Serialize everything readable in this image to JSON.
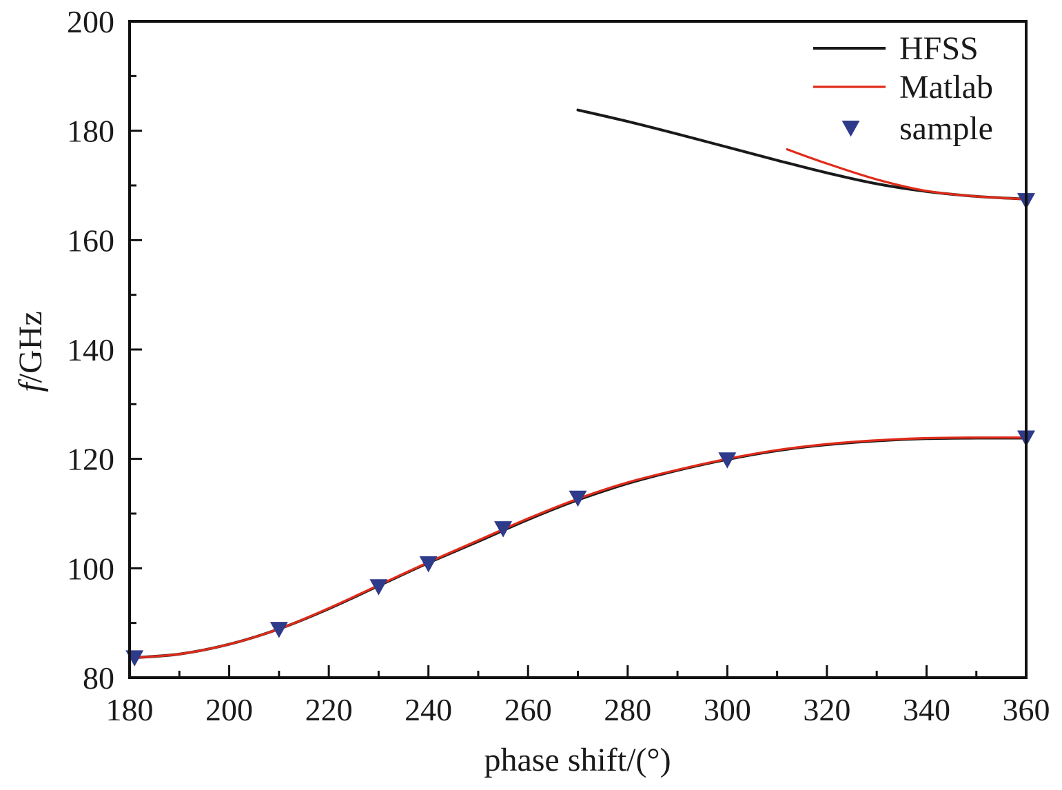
{
  "chart_data": {
    "type": "line",
    "xlabel": "phase shift/(°)",
    "ylabel_italic": "f",
    "ylabel_rest": "/GHz",
    "xlim": [
      180,
      360
    ],
    "ylim": [
      80,
      200
    ],
    "x_ticks": [
      180,
      200,
      220,
      240,
      260,
      280,
      300,
      320,
      340,
      360
    ],
    "y_ticks": [
      80,
      100,
      120,
      140,
      160,
      180,
      200
    ],
    "legend_position": "top-right",
    "series": [
      {
        "name": "HFSS",
        "kind": "line",
        "color": "#1a1a1a",
        "segments": [
          {
            "x": [
              180,
              190,
              200,
              210,
              220,
              230,
              240,
              250,
              260,
              270,
              280,
              290,
              300,
              310,
              320,
              330,
              340,
              350,
              360
            ],
            "y": [
              83.6,
              84.3,
              86.1,
              88.9,
              92.6,
              96.8,
              101.0,
              104.9,
              108.9,
              112.5,
              115.5,
              117.9,
              119.9,
              121.5,
              122.6,
              123.3,
              123.7,
              123.8,
              123.8
            ]
          },
          {
            "x": [
              270,
              280,
              290,
              300,
              310,
              320,
              330,
              340,
              350,
              360
            ],
            "y": [
              183.8,
              181.7,
              179.4,
              177.0,
              174.6,
              172.3,
              170.3,
              168.9,
              168.0,
              167.5
            ]
          }
        ]
      },
      {
        "name": "Matlab",
        "kind": "line",
        "color": "#e02b1a",
        "segments": [
          {
            "x": [
              180,
              190,
              200,
              210,
              220,
              230,
              240,
              250,
              260,
              270,
              280,
              290,
              300,
              310,
              320,
              330,
              340,
              350,
              360
            ],
            "y": [
              83.6,
              84.3,
              86.1,
              88.9,
              92.7,
              96.9,
              101.1,
              105.1,
              109.1,
              112.7,
              115.7,
              118.0,
              120.0,
              121.6,
              122.7,
              123.4,
              123.8,
              123.9,
              123.9
            ]
          },
          {
            "x": [
              312,
              320,
              330,
              340,
              350,
              360
            ],
            "y": [
              176.6,
              174.0,
              171.1,
              169.0,
              168.0,
              167.5
            ]
          }
        ]
      },
      {
        "name": "sample",
        "kind": "marker",
        "color": "#2e3a8a",
        "x": [
          181,
          210,
          230,
          240,
          255,
          270,
          300,
          360,
          360
        ],
        "y": [
          83.6,
          88.8,
          96.6,
          100.8,
          107.2,
          112.8,
          119.8,
          123.8,
          167.2
        ]
      }
    ]
  }
}
